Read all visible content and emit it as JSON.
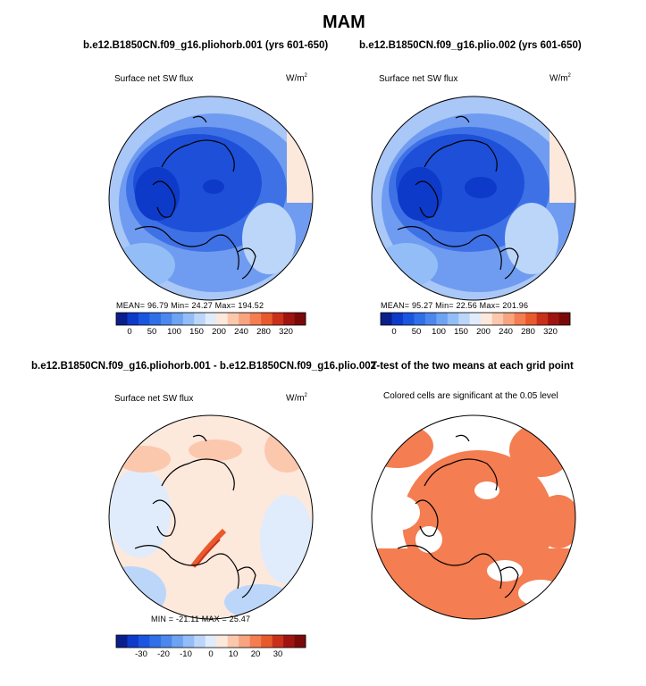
{
  "figure": {
    "title": "MAM",
    "panels": [
      {
        "title": "b.e12.B1850CN.f09_g16.pliohorb.001 (yrs 601-650)",
        "variable": "Surface net SW flux",
        "units": "W/m",
        "units_sup": "2",
        "stats": "MEAN=   96.79   Min=   24.27   Max= 194.52",
        "colorbar": {
          "colors": [
            "#0a1e8c",
            "#0d3ac8",
            "#1a55e0",
            "#2f6fe8",
            "#4c87ee",
            "#6ea2f2",
            "#93bdf6",
            "#bcd6fa",
            "#e0ecfc",
            "#fde8dc",
            "#fbc8ad",
            "#f8a47f",
            "#f47d51",
            "#e85a2c",
            "#c9301a",
            "#a01410",
            "#7a0a0a"
          ],
          "ticks": [
            "0",
            "50",
            "100",
            "150",
            "200",
            "240",
            "280",
            "320"
          ]
        }
      },
      {
        "title": "b.e12.B1850CN.f09_g16.plio.002 (yrs 601-650)",
        "variable": "Surface net SW flux",
        "units": "W/m",
        "units_sup": "2",
        "stats": "MEAN=   95.27   Min=   22.56   Max= 201.96",
        "colorbar": {
          "colors": [
            "#0a1e8c",
            "#0d3ac8",
            "#1a55e0",
            "#2f6fe8",
            "#4c87ee",
            "#6ea2f2",
            "#93bdf6",
            "#bcd6fa",
            "#e0ecfc",
            "#fde8dc",
            "#fbc8ad",
            "#f8a47f",
            "#f47d51",
            "#e85a2c",
            "#c9301a",
            "#a01410",
            "#7a0a0a"
          ],
          "ticks": [
            "0",
            "50",
            "100",
            "150",
            "200",
            "240",
            "280",
            "320"
          ]
        }
      },
      {
        "title": "b.e12.B1850CN.f09_g16.pliohorb.001 - b.e12.B1850CN.f09_g16.plio.002",
        "variable": "Surface net SW flux",
        "units": "W/m",
        "units_sup": "2",
        "stats": "MIN = -21.11  MAX =  25.47",
        "colorbar": {
          "colors": [
            "#0a1e8c",
            "#0d3ac8",
            "#1a55e0",
            "#2f6fe8",
            "#4c87ee",
            "#6ea2f2",
            "#93bdf6",
            "#bcd6fa",
            "#e0ecfc",
            "#fde8dc",
            "#fbc8ad",
            "#f8a47f",
            "#f47d51",
            "#e85a2c",
            "#c9301a",
            "#a01410",
            "#7a0a0a"
          ],
          "ticks": [
            "-30",
            "-20",
            "-10",
            "0",
            "10",
            "20",
            "30"
          ]
        }
      },
      {
        "title": "T-test of the two means at each grid point",
        "subtitle": "Colored cells are significant at the 0.05 level"
      }
    ]
  }
}
